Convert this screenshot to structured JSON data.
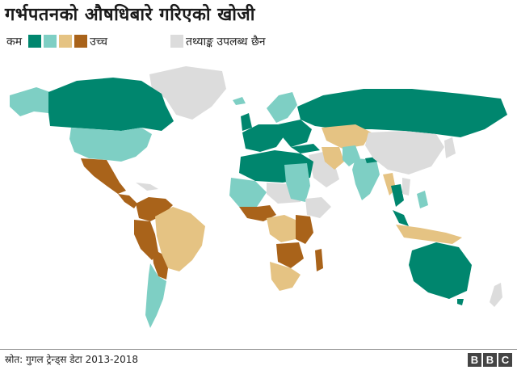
{
  "title": "गर्भपतनको औषधिबारे गरिएको खोजी",
  "legend": {
    "low_label": "कम",
    "high_label": "उच्च",
    "no_data_label": "तथ्याङ्क उपलब्ध छैन",
    "colors": {
      "low": "#00866e",
      "low_mid": "#7ecfc4",
      "high_mid": "#e5c383",
      "high": "#a9631a",
      "no_data": "#dcdcdc"
    }
  },
  "source": "स्रोत: गुगल ट्रेन्ड्स डेटा 2013-2018",
  "logo": {
    "letters": [
      "B",
      "B",
      "C"
    ]
  }
}
